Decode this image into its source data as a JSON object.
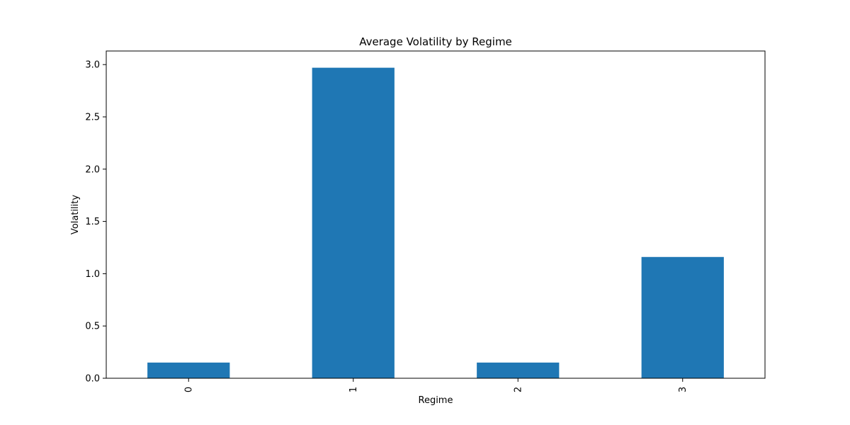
{
  "chart_data": {
    "type": "bar",
    "title": "Average Volatility by Regime",
    "xlabel": "Regime",
    "ylabel": "Volatility",
    "categories": [
      "0",
      "1",
      "2",
      "3"
    ],
    "values": [
      0.15,
      2.97,
      0.15,
      1.16
    ],
    "ylim": [
      0,
      3.13
    ],
    "yticks": [
      0.0,
      0.5,
      1.0,
      1.5,
      2.0,
      2.5,
      3.0
    ],
    "ytick_labels": [
      "0.0",
      "0.5",
      "1.0",
      "1.5",
      "2.0",
      "2.5",
      "3.0"
    ],
    "xtick_rotation": "vertical",
    "grid": false,
    "legend": "none",
    "bar_color": "#1f77b4"
  }
}
